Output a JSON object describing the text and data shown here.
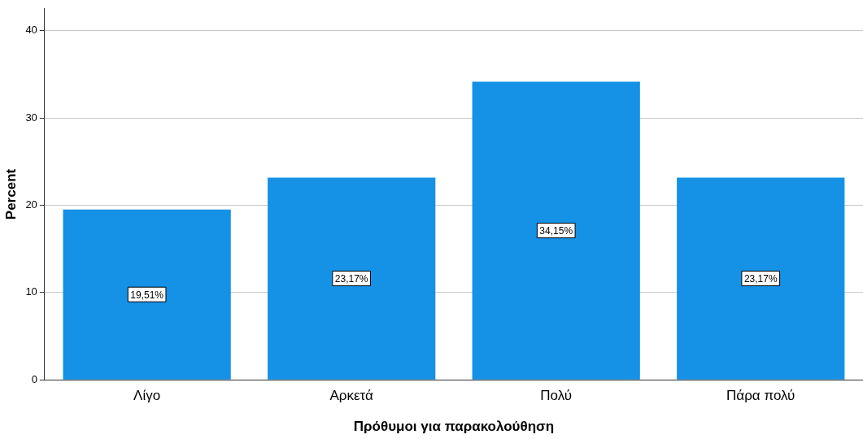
{
  "chart_data": {
    "type": "bar",
    "xlabel": "Πρόθυμοι για παρακολούθηση",
    "ylabel": "Percent",
    "categories": [
      "Λίγο",
      "Αρκετά",
      "Πολύ",
      "Πάρα πολύ"
    ],
    "values": [
      19.51,
      23.17,
      34.15,
      23.17
    ],
    "color": "#1591e6",
    "value_labels": [
      "19,51%",
      "23,17%",
      "34,15%",
      "23,17%"
    ],
    "ylim": [
      0,
      42.5
    ],
    "yticks": [
      0,
      10,
      20,
      30,
      40
    ],
    "grid": "y",
    "legend": false
  }
}
